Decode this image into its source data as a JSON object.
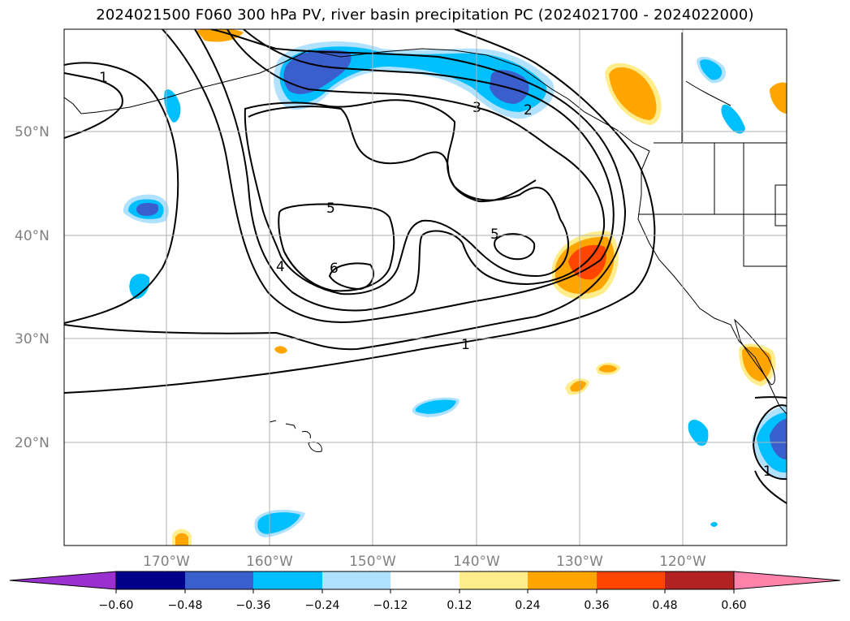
{
  "title": "2024021500 F060 300 hPa PV, river basin precipitation PC (2024021700 - 2024022000)",
  "lat_labels": [
    "50°N",
    "40°N",
    "30°N",
    "20°N"
  ],
  "lon_labels": [
    "170°W",
    "160°W",
    "150°W",
    "140°W",
    "130°W",
    "120°W"
  ],
  "contour_labels": [
    "1",
    "5",
    "4",
    "6",
    "5",
    "3",
    "2",
    "1",
    "1"
  ],
  "colorbar": {
    "tick_labels": [
      "−0.60",
      "−0.48",
      "−0.36",
      "−0.24",
      "−0.12",
      "0.12",
      "0.24",
      "0.36",
      "0.48",
      "0.60"
    ],
    "colors": [
      "#9b30d0",
      "#00008b",
      "#3a5fcd",
      "#00bfff",
      "#b0e2ff",
      "#ffffff",
      "#ffec8b",
      "#ffa500",
      "#ff4500",
      "#b22222",
      "#ff82ab"
    ]
  }
}
